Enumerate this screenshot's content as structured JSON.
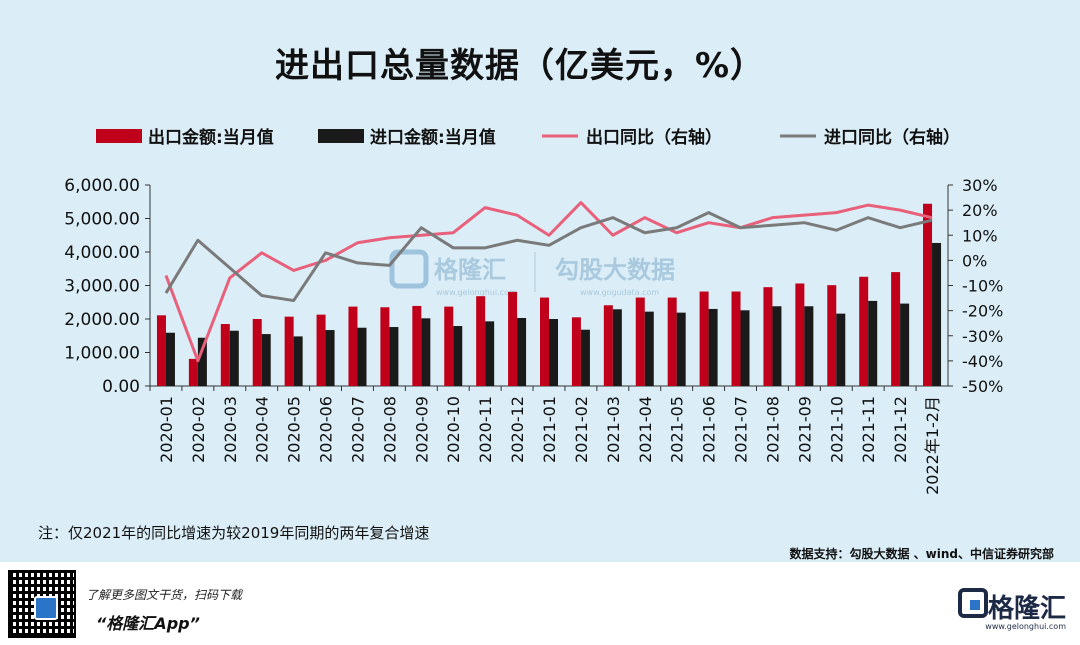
{
  "title": "进出口总量数据（亿美元，%）",
  "note": "注：仅2021年的同比增速为较2019年同期的两年复合增速",
  "source": "数据支持：勾股大数据 、wind、中信证券研究部",
  "watermark": {
    "brand": "格隆汇",
    "site": "www.gelonghui.com",
    "product": "勾股大数据",
    "site2": "www.gogudata.com"
  },
  "footer": {
    "promo": "了解更多图文干货，扫码下载",
    "app_name": "“格隆汇App”",
    "brand_name": "格隆汇",
    "brand_url": "www.gelonghui.com",
    "qr_icon": "qr-code-icon",
    "logo_icon": "gelonghui-logo-icon"
  },
  "chart_data": {
    "type": "bar",
    "categories": [
      "2020-01",
      "2020-02",
      "2020-03",
      "2020-04",
      "2020-05",
      "2020-06",
      "2020-07",
      "2020-08",
      "2020-09",
      "2020-10",
      "2020-11",
      "2020-12",
      "2021-01",
      "2021-02",
      "2021-03",
      "2021-04",
      "2021-05",
      "2021-06",
      "2021-07",
      "2021-08",
      "2021-09",
      "2021-10",
      "2021-11",
      "2021-12",
      "2022年1-2月"
    ],
    "series": [
      {
        "name": "出口金额:当月值",
        "type": "bar",
        "axis": "left",
        "color": "#c0001a",
        "values": [
          2110,
          810,
          1850,
          2000,
          2070,
          2130,
          2370,
          2350,
          2390,
          2370,
          2680,
          2810,
          2640,
          2050,
          2410,
          2640,
          2640,
          2820,
          2820,
          2950,
          3060,
          3010,
          3260,
          3400,
          5440
        ]
      },
      {
        "name": "进口金额:当月值",
        "type": "bar",
        "axis": "left",
        "color": "#1a1a1a",
        "values": [
          1590,
          1440,
          1650,
          1550,
          1480,
          1670,
          1740,
          1760,
          2020,
          1790,
          1930,
          2030,
          2000,
          1680,
          2290,
          2220,
          2190,
          2300,
          2260,
          2380,
          2380,
          2160,
          2540,
          2460,
          4270
        ]
      },
      {
        "name": "出口同比（右轴）",
        "type": "line",
        "axis": "right",
        "color": "#e8607a",
        "values": [
          -6,
          -40,
          -7,
          3,
          -4,
          0,
          7,
          9,
          10,
          11,
          21,
          18,
          10,
          23,
          10,
          17,
          11,
          15,
          13,
          17,
          18,
          19,
          22,
          20,
          17
        ]
      },
      {
        "name": "进口同比（右轴）",
        "type": "line",
        "axis": "right",
        "color": "#7a7a7a",
        "values": [
          -13,
          8,
          -3,
          -14,
          -16,
          3,
          -1,
          -2,
          13,
          5,
          5,
          8,
          6,
          13,
          17,
          11,
          13,
          19,
          13,
          14,
          15,
          12,
          17,
          13,
          16
        ]
      }
    ],
    "y_left": {
      "min": 0,
      "max": 6000,
      "ticks": [
        "0.00",
        "1,000.00",
        "2,000.00",
        "3,000.00",
        "4,000.00",
        "5,000.00",
        "6,000.00"
      ]
    },
    "y_right": {
      "min": -50,
      "max": 30,
      "ticks": [
        "-50%",
        "-40%",
        "-30%",
        "-20%",
        "-10%",
        "0%",
        "10%",
        "20%",
        "30%"
      ]
    },
    "legend_position": "top",
    "grid": false
  }
}
